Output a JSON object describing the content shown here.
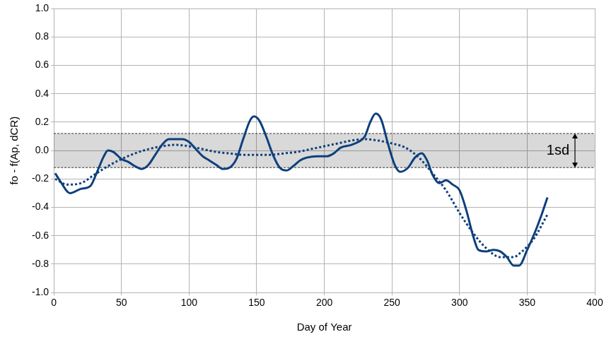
{
  "chart_data": {
    "type": "line",
    "x_label": "Day of Year",
    "y_label": "fo - f(Ap, dCR)",
    "xlim": [
      0,
      400
    ],
    "xticks": [
      0,
      50,
      100,
      150,
      200,
      250,
      300,
      350,
      400
    ],
    "ylim": [
      -1,
      1
    ],
    "yticks": [
      {
        "value": -1,
        "label": "-1.0"
      },
      -0.8,
      -0.6,
      -0.4,
      -0.2,
      {
        "value": 0,
        "label": "0.0"
      },
      0.2,
      0.4,
      0.6,
      0.8,
      {
        "value": 1,
        "label": "1.0"
      }
    ],
    "grid": true,
    "sd_band": {
      "values": [
        -0.12,
        0.12
      ],
      "label": "1sd"
    },
    "series": [
      {
        "color": "#0d3f7c",
        "line_style": "solid",
        "x": [
          1,
          5,
          12,
          20,
          27,
          32,
          37,
          40,
          44,
          50,
          55,
          60,
          65,
          70,
          75,
          80,
          85,
          90,
          95,
          100,
          105,
          110,
          115,
          120,
          125,
          130,
          135,
          140,
          145,
          148,
          152,
          157,
          162,
          167,
          172,
          177,
          182,
          187,
          195,
          202,
          207,
          212,
          220,
          225,
          230,
          234,
          238,
          242,
          247,
          252,
          256,
          262,
          267,
          272,
          276,
          280,
          285,
          290,
          295,
          300,
          305,
          310,
          314,
          320,
          325,
          330,
          335,
          340,
          344,
          350,
          356,
          360,
          365
        ],
        "values": [
          -0.16,
          -0.22,
          -0.3,
          -0.27,
          -0.25,
          -0.15,
          -0.04,
          0.0,
          -0.01,
          -0.06,
          -0.08,
          -0.11,
          -0.13,
          -0.1,
          -0.03,
          0.04,
          0.08,
          0.08,
          0.08,
          0.06,
          0.01,
          -0.04,
          -0.07,
          -0.1,
          -0.13,
          -0.12,
          -0.06,
          0.08,
          0.21,
          0.24,
          0.21,
          0.1,
          -0.03,
          -0.12,
          -0.14,
          -0.11,
          -0.07,
          -0.05,
          -0.04,
          -0.04,
          -0.02,
          0.02,
          0.04,
          0.06,
          0.1,
          0.2,
          0.26,
          0.22,
          0.05,
          -0.1,
          -0.15,
          -0.12,
          -0.05,
          -0.02,
          -0.07,
          -0.17,
          -0.23,
          -0.21,
          -0.24,
          -0.28,
          -0.42,
          -0.6,
          -0.7,
          -0.71,
          -0.7,
          -0.71,
          -0.75,
          -0.81,
          -0.81,
          -0.7,
          -0.57,
          -0.47,
          -0.33
        ]
      },
      {
        "color": "#0d3f7c",
        "line_style": "dotted",
        "x": [
          1,
          10,
          20,
          30,
          40,
          50,
          60,
          70,
          80,
          90,
          100,
          110,
          120,
          130,
          140,
          150,
          160,
          170,
          180,
          190,
          200,
          210,
          220,
          230,
          240,
          250,
          260,
          270,
          280,
          290,
          300,
          310,
          320,
          330,
          340,
          345,
          355,
          365
        ],
        "values": [
          -0.2,
          -0.24,
          -0.23,
          -0.17,
          -0.11,
          -0.06,
          -0.02,
          0.01,
          0.03,
          0.04,
          0.03,
          0.01,
          -0.01,
          -0.02,
          -0.03,
          -0.03,
          -0.03,
          -0.02,
          -0.01,
          0.01,
          0.03,
          0.05,
          0.07,
          0.08,
          0.07,
          0.05,
          0.02,
          -0.05,
          -0.16,
          -0.28,
          -0.44,
          -0.58,
          -0.69,
          -0.75,
          -0.75,
          -0.72,
          -0.62,
          -0.45
        ]
      }
    ]
  }
}
